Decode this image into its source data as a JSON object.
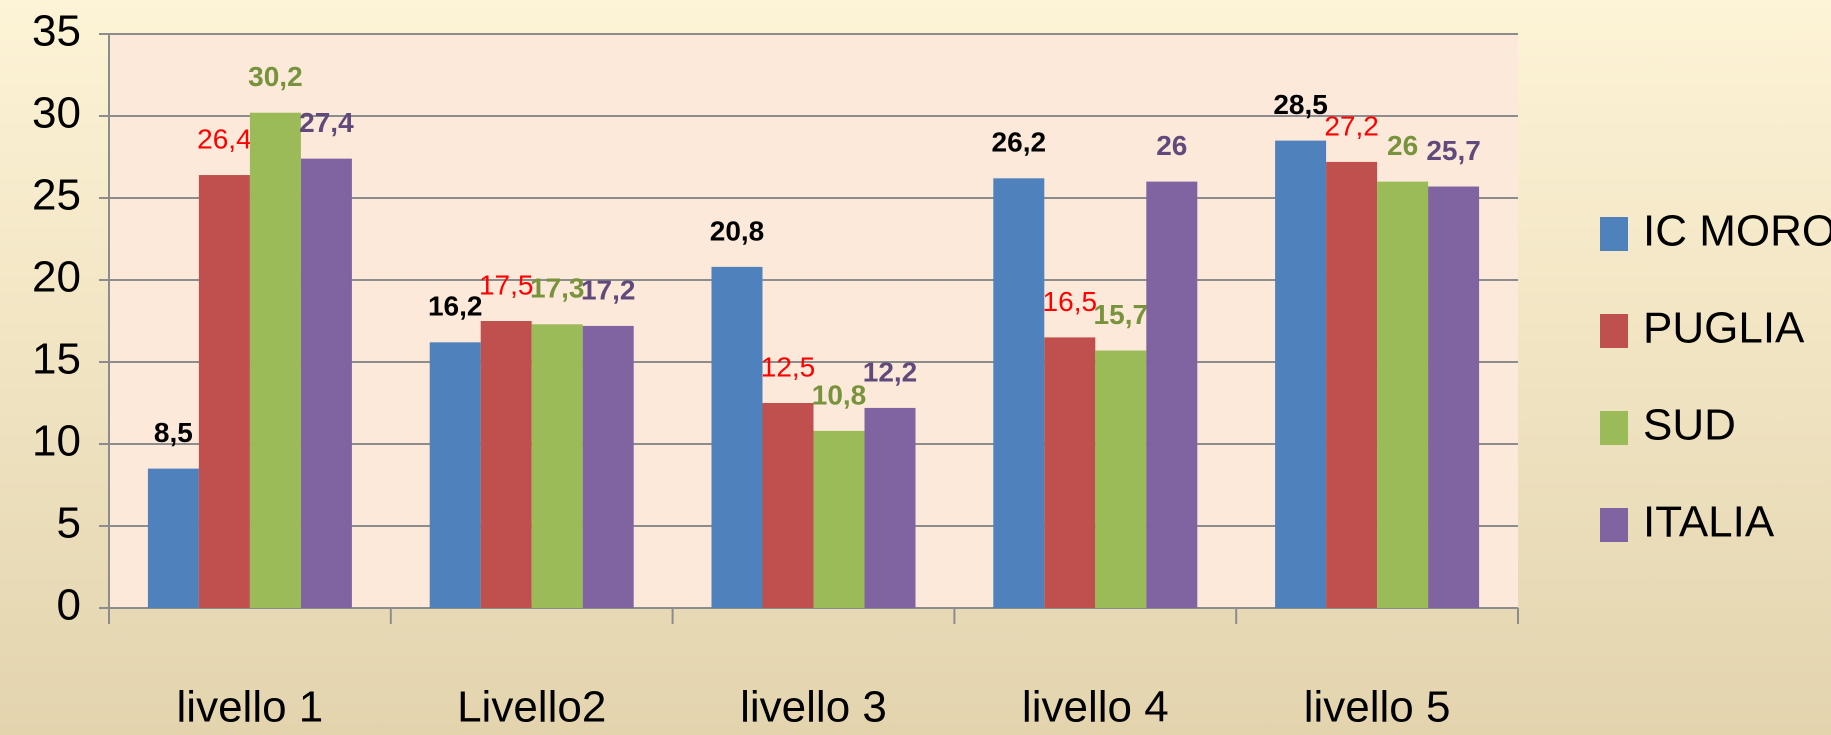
{
  "chart_data": {
    "type": "bar",
    "categories": [
      "livello 1",
      "Livello2",
      "livello 3",
      "livello 4",
      "livello 5"
    ],
    "series": [
      {
        "name": "IC MORO",
        "color": "#4f81bd",
        "label_color": "#000000",
        "values": [
          8.5,
          16.2,
          20.8,
          26.2,
          28.5
        ],
        "value_labels": [
          "8,5",
          "16,2",
          "20,8",
          "26,2",
          "28,5"
        ]
      },
      {
        "name": "PUGLIA",
        "color": "#c0504d",
        "label_color": "#ff0000",
        "values": [
          26.4,
          17.5,
          12.5,
          16.5,
          27.2
        ],
        "value_labels": [
          "26,4",
          "17,5",
          "12,5",
          "16,5",
          "27,2"
        ]
      },
      {
        "name": "SUD",
        "color": "#9bbb59",
        "label_color": "#77933c",
        "values": [
          30.2,
          17.3,
          10.8,
          15.7,
          26
        ],
        "value_labels": [
          "30,2",
          "17,3",
          "10,8",
          "15,7",
          "26"
        ]
      },
      {
        "name": "ITALIA",
        "color": "#8064a2",
        "label_color": "#604a7b",
        "values": [
          27.4,
          17.2,
          12.2,
          26,
          25.7
        ],
        "value_labels": [
          "27,4",
          "17,2",
          "12,2",
          "26",
          "25,7"
        ]
      }
    ],
    "ylim": [
      0,
      35
    ],
    "yticks": [
      0,
      5,
      10,
      15,
      20,
      25,
      30,
      35
    ],
    "grid": true,
    "legend": "right"
  }
}
